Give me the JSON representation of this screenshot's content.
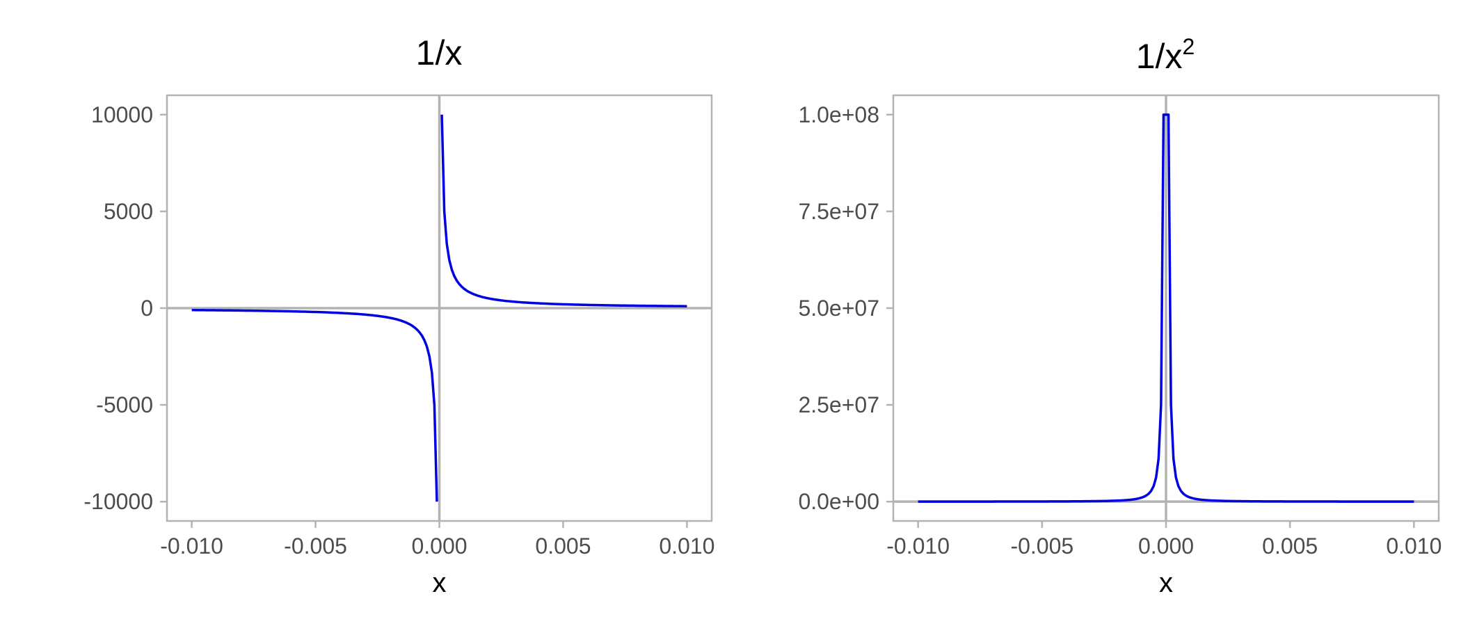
{
  "line_color": "#0000e0",
  "axis_color": "#b3b3b3",
  "chart_data": [
    {
      "type": "line",
      "title": "1/x",
      "title_superscript": "",
      "xlabel": "x",
      "ylabel": "",
      "xlim": [
        -0.011,
        0.011
      ],
      "ylim": [
        -11000,
        11000
      ],
      "x_ticks": [
        -0.01,
        -0.005,
        0.0,
        0.005,
        0.01
      ],
      "x_tick_labels": [
        "-0.010",
        "-0.005",
        "0.000",
        "0.005",
        "0.010"
      ],
      "y_ticks": [
        -10000,
        -5000,
        0,
        5000,
        10000
      ],
      "y_tick_labels": [
        "-10000",
        "-5000",
        "0",
        "5000",
        "10000"
      ],
      "function": "1/x",
      "x_range": [
        -0.01,
        0.01
      ],
      "x_step": 0.0001,
      "reference_lines": {
        "x": 0,
        "y": 0
      },
      "grid": false
    },
    {
      "type": "line",
      "title": "1/x",
      "title_superscript": "2",
      "xlabel": "x",
      "ylabel": "",
      "xlim": [
        -0.011,
        0.011
      ],
      "ylim": [
        -5000000,
        105000000
      ],
      "x_ticks": [
        -0.01,
        -0.005,
        0.0,
        0.005,
        0.01
      ],
      "x_tick_labels": [
        "-0.010",
        "-0.005",
        "0.000",
        "0.005",
        "0.010"
      ],
      "y_ticks": [
        0,
        25000000,
        50000000,
        75000000,
        100000000
      ],
      "y_tick_labels": [
        "0.0e+00",
        "2.5e+07",
        "5.0e+07",
        "7.5e+07",
        "1.0e+08"
      ],
      "function": "1/x^2",
      "x_range": [
        -0.01,
        0.01
      ],
      "x_step": 0.0001,
      "reference_lines": {
        "x": 0,
        "y": 0
      },
      "grid": false
    }
  ]
}
